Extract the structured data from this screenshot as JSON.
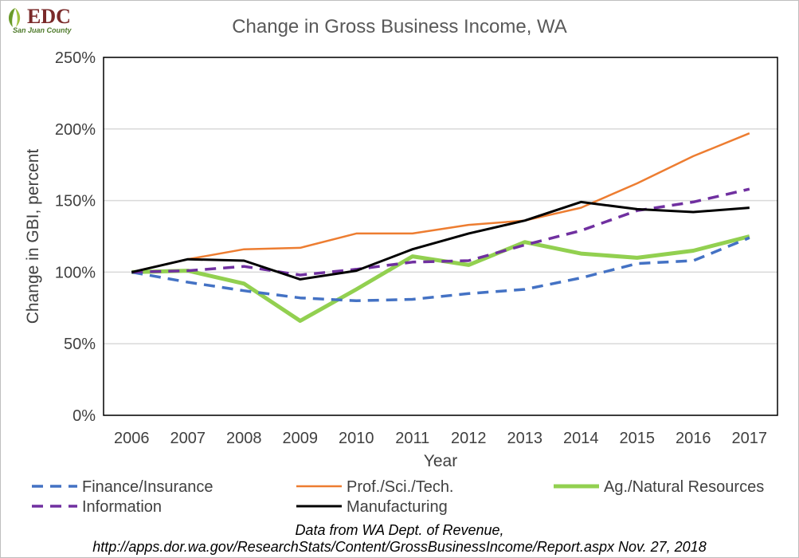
{
  "logo": {
    "main": "EDC",
    "sub": "San Juan County"
  },
  "chart_data": {
    "type": "line",
    "title": "Change in Gross Business Income, WA",
    "xlabel": "Year",
    "ylabel": "Change in GBI, percent",
    "categories": [
      "2006",
      "2007",
      "2008",
      "2009",
      "2010",
      "2011",
      "2012",
      "2013",
      "2014",
      "2015",
      "2016",
      "2017"
    ],
    "ylim": [
      0,
      250
    ],
    "yticks": [
      0,
      50,
      100,
      150,
      200,
      250
    ],
    "ytick_labels": [
      "0%",
      "50%",
      "100%",
      "150%",
      "200%",
      "250%"
    ],
    "grid": "horizontal",
    "legend_position": "bottom",
    "series": [
      {
        "name": "Finance/Insurance",
        "color": "#4472c4",
        "style": "dashed",
        "values": [
          100,
          93,
          87,
          82,
          80,
          81,
          85,
          88,
          96,
          106,
          108,
          124
        ]
      },
      {
        "name": "Prof./Sci./Tech.",
        "color": "#ed7d31",
        "style": "solid-thin",
        "values": [
          100,
          109,
          116,
          117,
          127,
          127,
          133,
          136,
          145,
          162,
          181,
          197
        ]
      },
      {
        "name": "Ag./Natural Resources",
        "color": "#92d050",
        "style": "solid-thick",
        "values": [
          100,
          101,
          92,
          66,
          88,
          111,
          105,
          121,
          113,
          110,
          115,
          125
        ]
      },
      {
        "name": "Information",
        "color": "#7030a0",
        "style": "dashed",
        "values": [
          100,
          101,
          104,
          98,
          102,
          107,
          108,
          119,
          129,
          143,
          149,
          158
        ]
      },
      {
        "name": "Manufacturing",
        "color": "#000000",
        "style": "solid",
        "values": [
          100,
          109,
          108,
          95,
          101,
          116,
          127,
          136,
          149,
          144,
          142,
          145
        ]
      }
    ],
    "source_line1": "Data from WA Dept. of Revenue,",
    "source_line2": "http://apps.dor.wa.gov/ResearchStats/Content/GrossBusinessIncome/Report.aspx Nov. 27, 2018"
  }
}
